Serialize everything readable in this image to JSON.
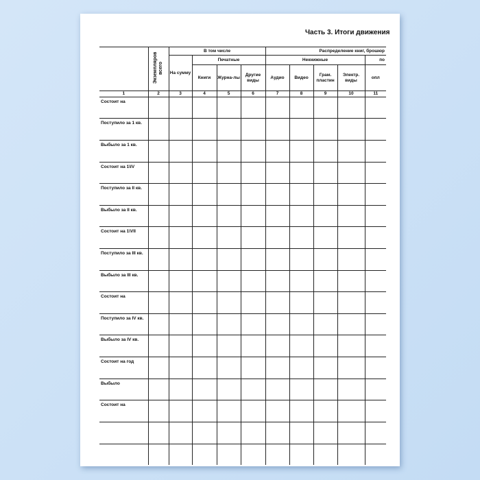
{
  "title": "Часть 3. Итоги движения",
  "header": {
    "copies_total": "Экземпляров всего",
    "including": "В том числе",
    "distribution": "Распределение книг,  брошюр",
    "sum": "На сумму",
    "printed": "Печатные",
    "nonbook": "Некнижные",
    "po": "по",
    "sub": [
      "Книги",
      "Журна-лы",
      "Другие виды",
      "Аудио",
      "Видео",
      "Грам. пластин",
      "Электр. виды",
      "опл"
    ]
  },
  "column_numbers": [
    "1",
    "2",
    "3",
    "4",
    "5",
    "6",
    "7",
    "8",
    "9",
    "10",
    "11"
  ],
  "rows": [
    "Состоит на",
    "Поступило за 1 кв.",
    "Выбыло за 1 кв.",
    "Состоит на 1\\IV",
    "Поступило за II кв.",
    "Выбыло за II кв.",
    "Состоит на 1\\VII",
    "Поступило за III кв.",
    "Выбыло за III кв.",
    "Состоит на",
    "Поступило за IV кв.",
    "Выбыло за IV кв.",
    "Состоит на год",
    "Выбыло",
    "Состоит на"
  ]
}
